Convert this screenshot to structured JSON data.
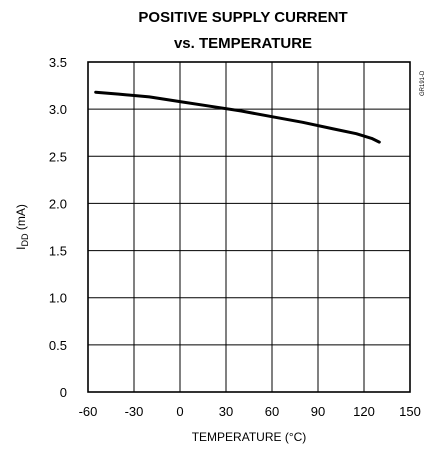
{
  "chart_data": {
    "type": "line",
    "title_line1": "POSITIVE SUPPLY CURRENT",
    "title_line2": "vs. TEMPERATURE",
    "xlabel": "TEMPERATURE (°C)",
    "ylabel_main": "I",
    "ylabel_sub": "DD",
    "ylabel_unit": " (mA)",
    "figure_code": "GR191-D",
    "xlim": [
      -60,
      150
    ],
    "ylim": [
      0,
      3.5
    ],
    "xticks": [
      -60,
      -30,
      0,
      30,
      60,
      90,
      120,
      150
    ],
    "yticks": [
      0,
      0.5,
      1.0,
      1.5,
      2.0,
      2.5,
      3.0,
      3.5
    ],
    "xtick_labels": [
      "-60",
      "-30",
      "0",
      "30",
      "60",
      "90",
      "120",
      "150"
    ],
    "ytick_labels": [
      "0",
      "0.5",
      "1.0",
      "1.5",
      "2.0",
      "2.5",
      "3.0",
      "3.5"
    ],
    "grid": true,
    "series": [
      {
        "x": [
          -55,
          -40,
          -20,
          0,
          20,
          40,
          60,
          80,
          100,
          115,
          125,
          130
        ],
        "y": [
          3.18,
          3.16,
          3.13,
          3.08,
          3.03,
          2.98,
          2.92,
          2.86,
          2.79,
          2.74,
          2.69,
          2.65
        ]
      }
    ]
  }
}
